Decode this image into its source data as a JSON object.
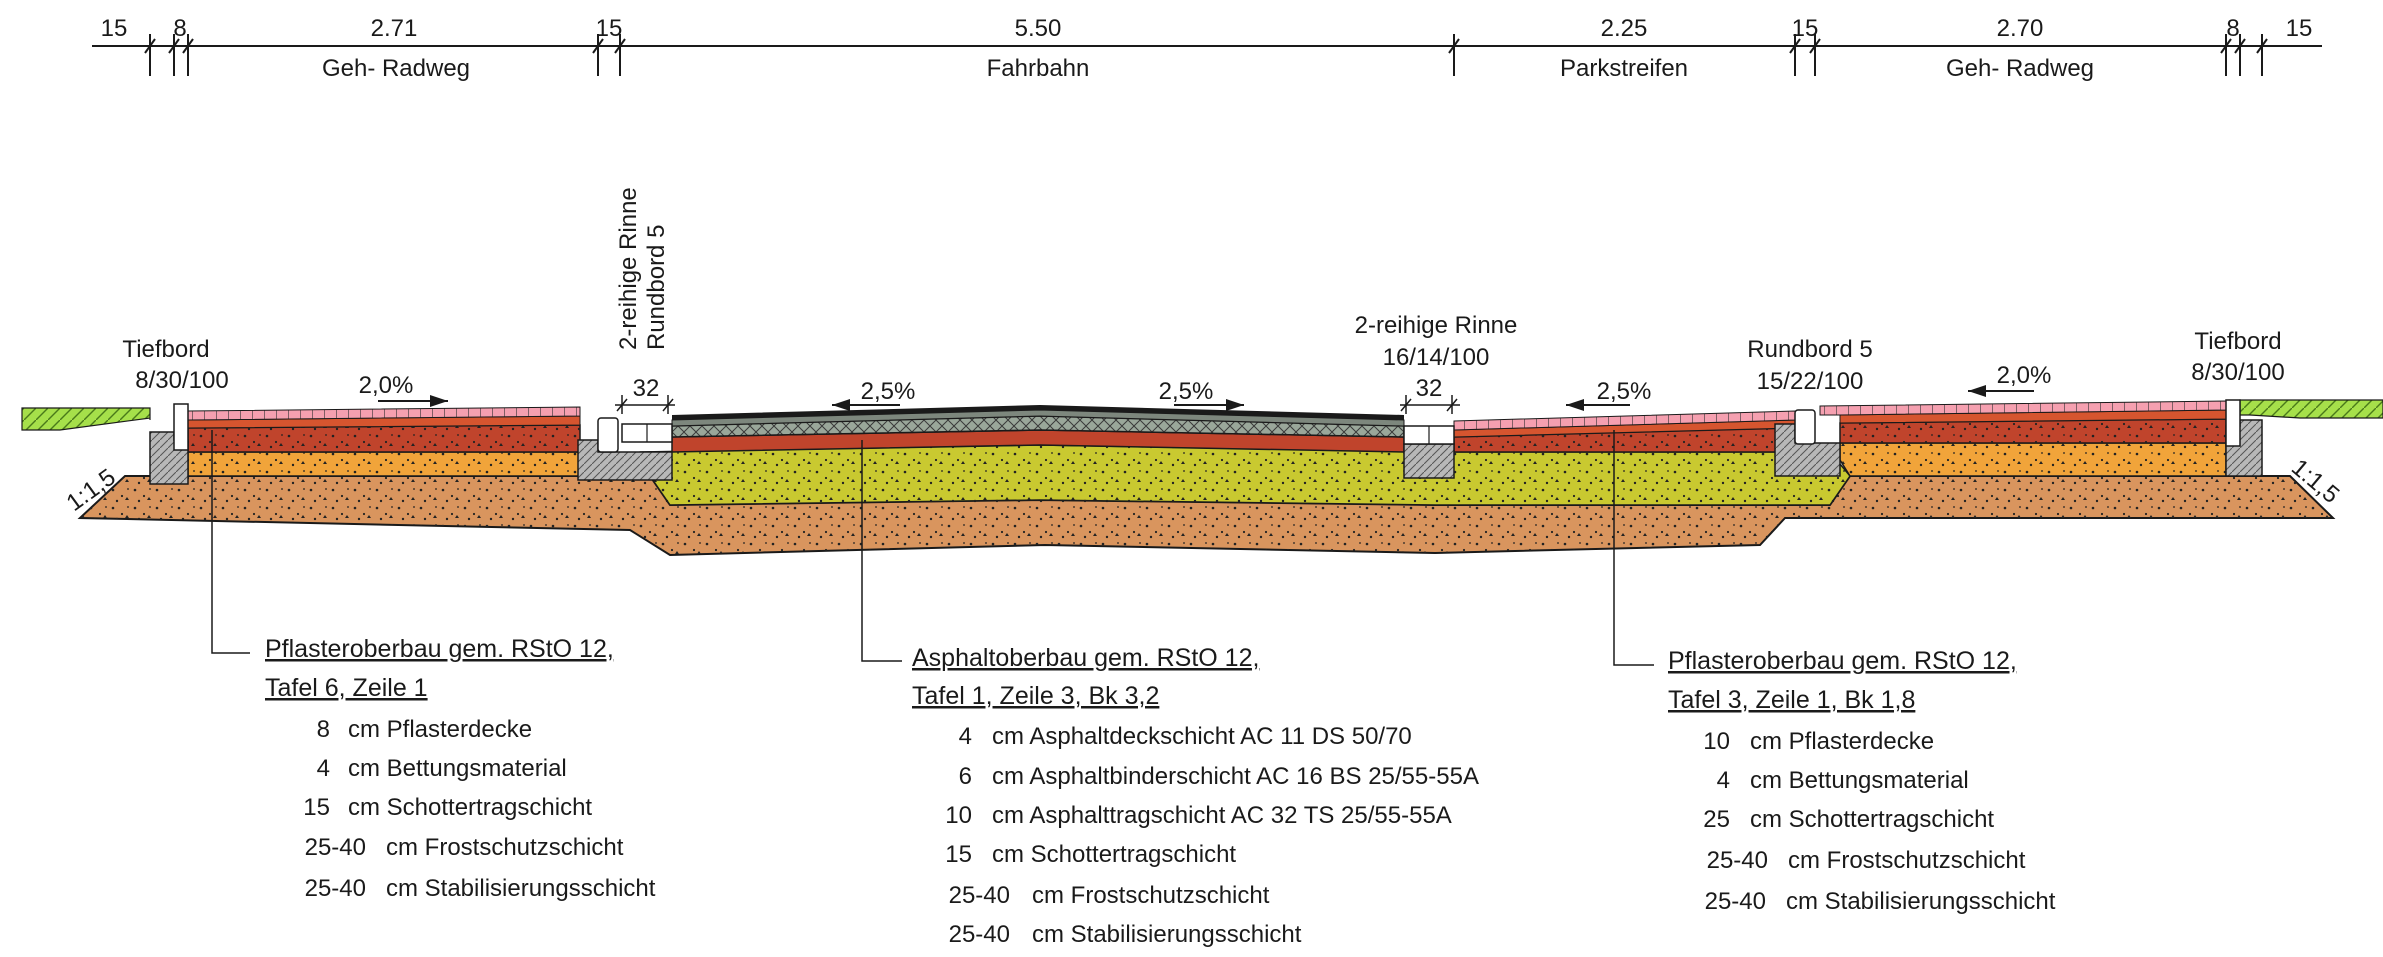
{
  "dimensions": {
    "widths": [
      "15",
      "8",
      "2.71",
      "15",
      "5.50",
      "2.25",
      "15",
      "2.70",
      "8",
      "15"
    ],
    "zones": [
      "Geh- Radweg",
      "Fahrbahn",
      "Parkstreifen",
      "Geh- Radweg"
    ]
  },
  "labels": {
    "tiefbord_left": [
      "Tiefbord",
      "8/30/100"
    ],
    "tiefbord_right": [
      "Tiefbord",
      "8/30/100"
    ],
    "rinne_left": [
      "2-reihige Rinne",
      "Rundbord 5"
    ],
    "rinne_right": [
      "2-reihige Rinne",
      "16/14/100"
    ],
    "rundbord_right": [
      "Rundbord 5",
      "15/22/100"
    ],
    "gutter_width_left": "32",
    "gutter_width_right": "32",
    "slopes": [
      "2,0%",
      "2,5%",
      "2,5%",
      "2,5%",
      "2,0%"
    ],
    "embankment_left": "1:1,5",
    "embankment_right": "1:1,5"
  },
  "legends": [
    {
      "title": [
        "Pflasteroberbau gem. RStO 12,",
        "Tafel 6, Zeile 1"
      ],
      "items": [
        {
          "t": "8",
          "d": "cm Pflasterdecke"
        },
        {
          "t": "4",
          "d": "cm Bettungsmaterial"
        },
        {
          "t": "15",
          "d": "cm Schottertragschicht"
        },
        {
          "t": "25-40",
          "d": "cm Frostschutzschicht"
        },
        {
          "t": "25-40",
          "d": "cm Stabilisierungsschicht"
        }
      ]
    },
    {
      "title": [
        "Asphaltoberbau gem. RStO 12,",
        "Tafel 1, Zeile 3, Bk 3,2"
      ],
      "items": [
        {
          "t": "4",
          "d": "cm Asphaltdeckschicht AC 11 DS 50/70"
        },
        {
          "t": "6",
          "d": "cm Asphaltbinderschicht AC 16 BS 25/55-55A"
        },
        {
          "t": "10",
          "d": "cm Asphalttragschicht  AC 32 TS 25/55-55A"
        },
        {
          "t": "15",
          "d": "cm Schottertragschicht"
        },
        {
          "t": "25-40",
          "d": "cm Frostschutzschicht"
        },
        {
          "t": "25-40",
          "d": "cm Stabilisierungsschicht"
        }
      ]
    },
    {
      "title": [
        "Pflasteroberbau gem. RStO 12,",
        "Tafel 3, Zeile 1, Bk 1,8"
      ],
      "items": [
        {
          "t": "10",
          "d": "cm Pflasterdecke"
        },
        {
          "t": "4",
          "d": "cm Bettungsmaterial"
        },
        {
          "t": "25",
          "d": "cm Schottertragschicht"
        },
        {
          "t": "25-40",
          "d": "cm Frostschutzschicht"
        },
        {
          "t": "25-40",
          "d": "cm Stabilisierungsschicht"
        }
      ]
    }
  ],
  "colors": {
    "paving": "#f5a0b0",
    "base_red": "#c0442c",
    "frost_orange": "#f1a43a",
    "stab_yellow": "#c9c930",
    "subgrade": "#d9955e",
    "asphalt_surface": "#1a1a1a",
    "asphalt_hatch": "#9aa79a",
    "grass": "#a6e04a",
    "concrete": "#b8b8b8"
  }
}
